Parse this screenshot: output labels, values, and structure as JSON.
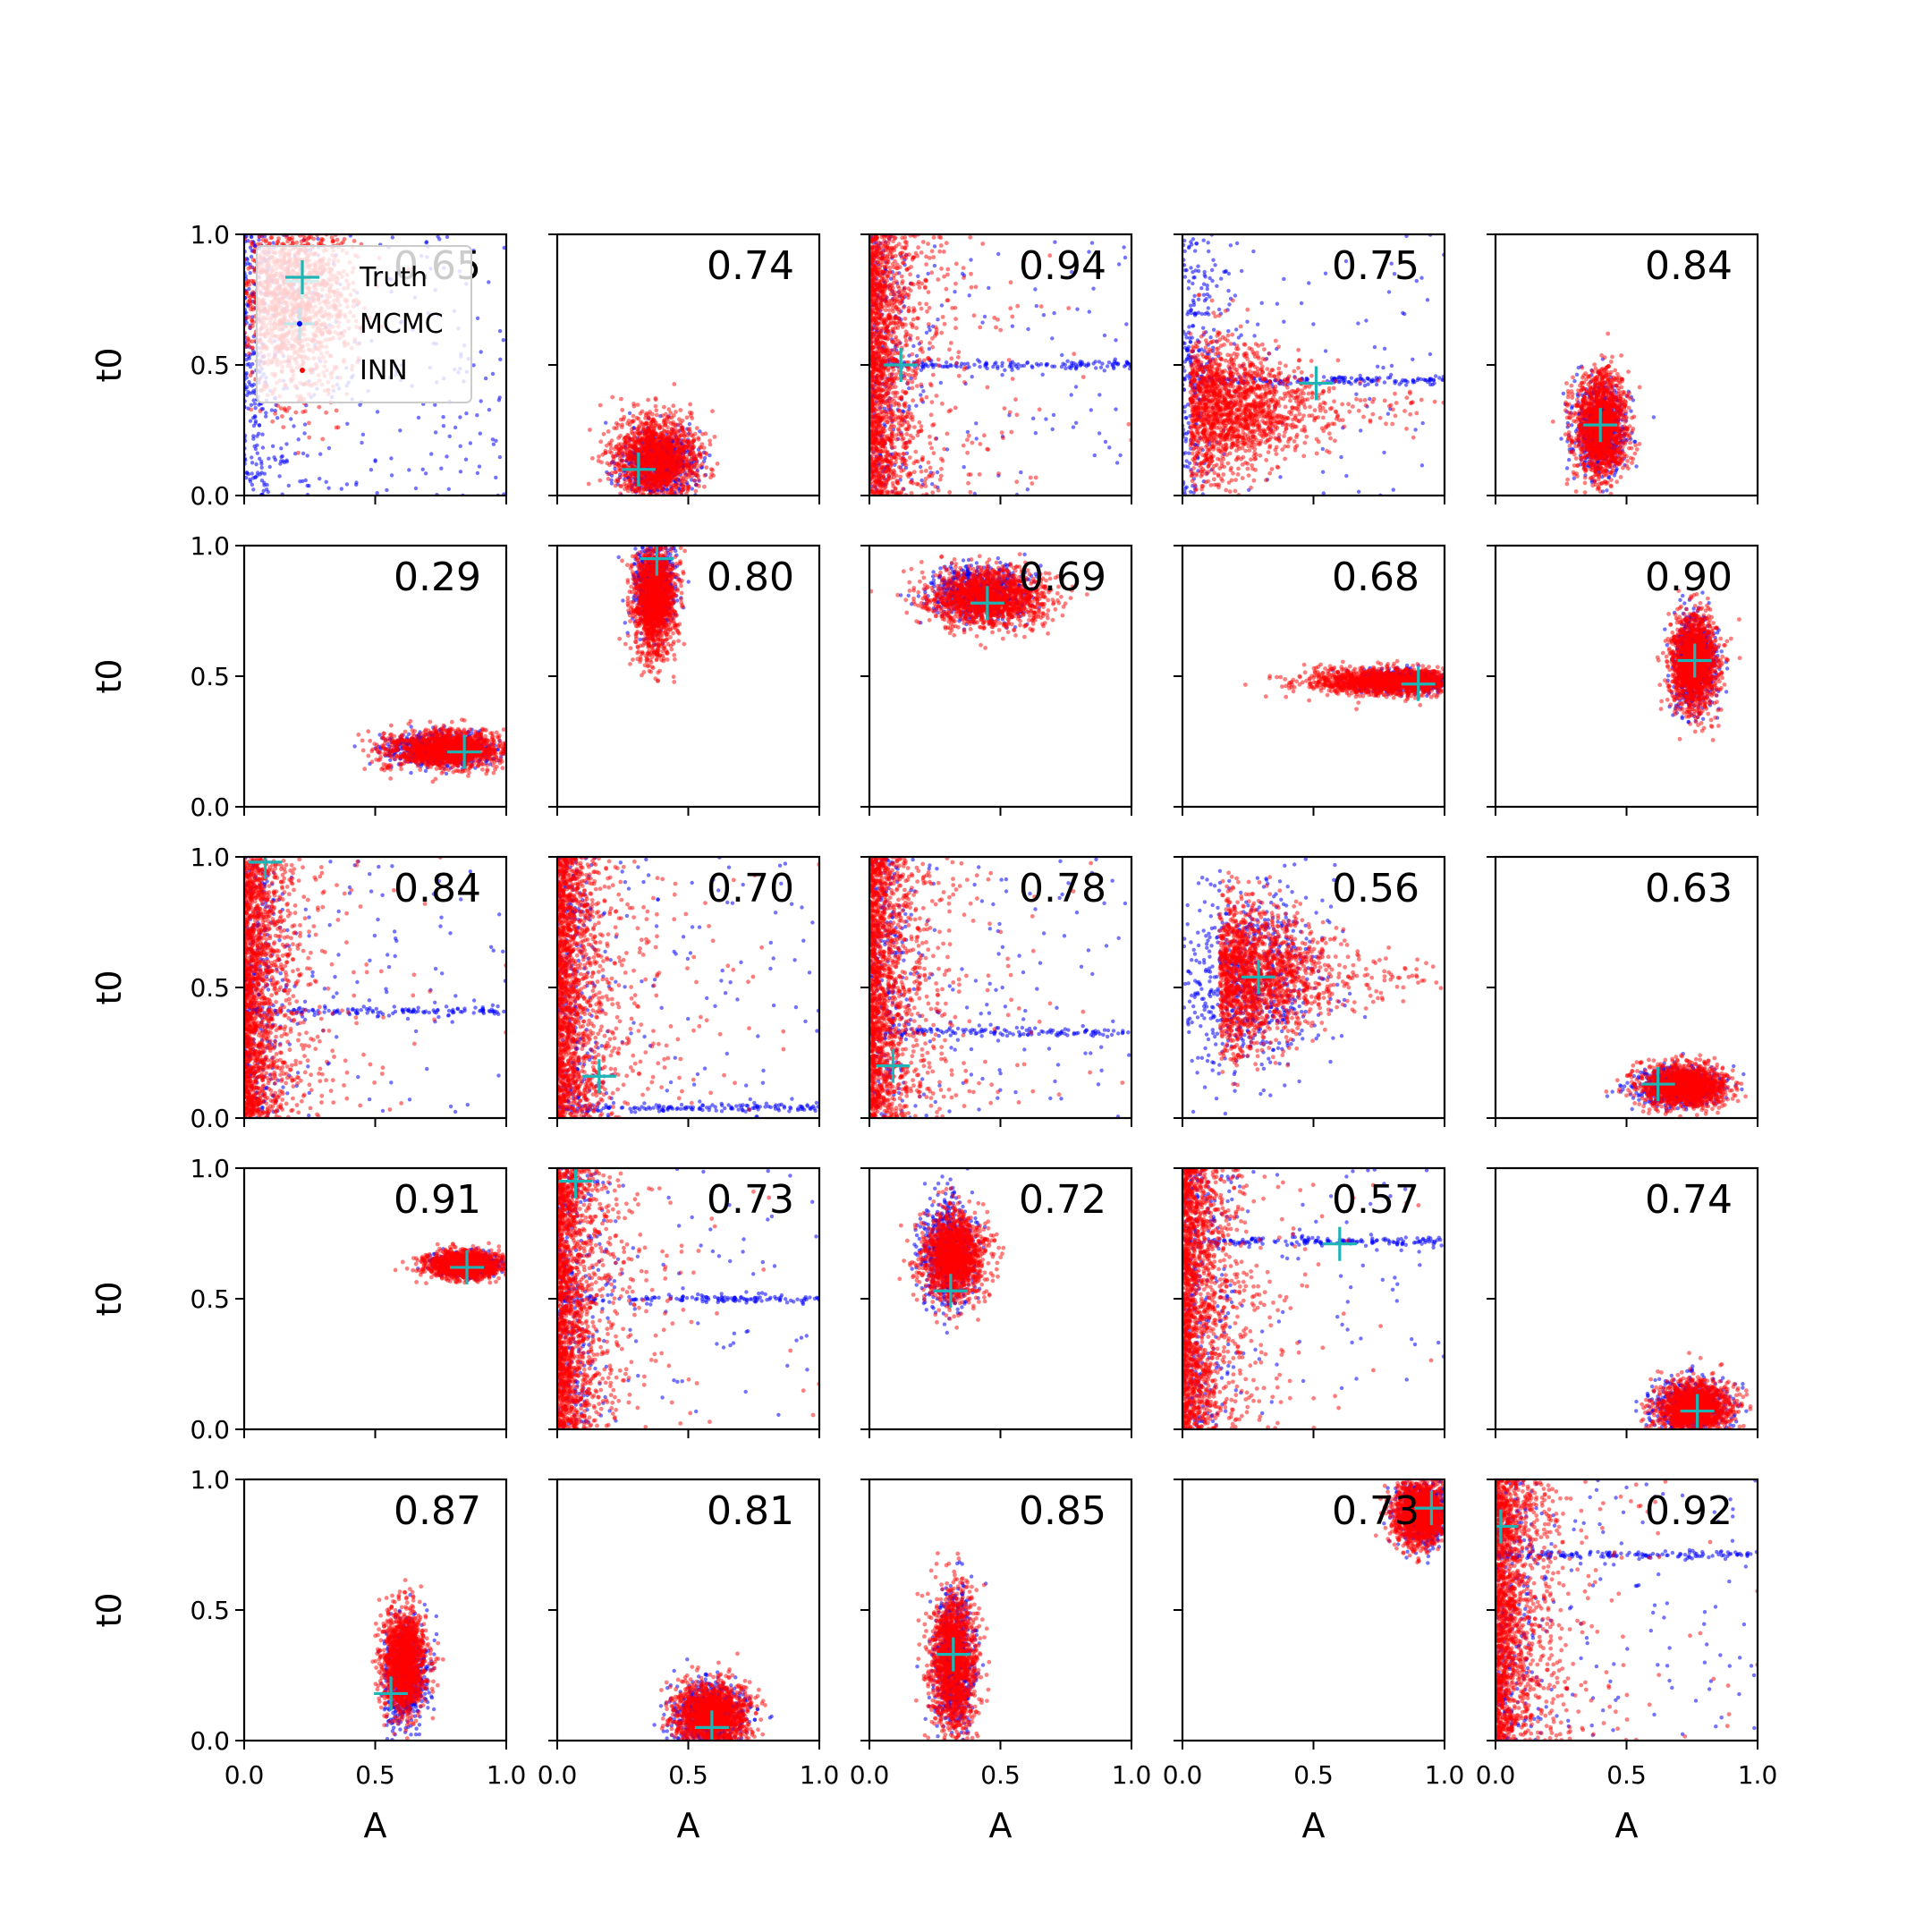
{
  "chart_data": {
    "type": "scatter",
    "rows": 5,
    "cols": 5,
    "xlabel": "A",
    "ylabel": "t0",
    "xlim": [
      0.0,
      1.0
    ],
    "ylim": [
      0.0,
      1.0
    ],
    "xticks": [
      "0.0",
      "0.5",
      "1.0"
    ],
    "yticks": [
      "0.0",
      "0.5",
      "1.0"
    ],
    "legend": {
      "placement": "top-left of first panel",
      "entries": [
        {
          "name": "Truth",
          "marker": "+",
          "color": "#1fb5b5"
        },
        {
          "name": "MCMC",
          "marker": "dot",
          "color": "#0000ff"
        },
        {
          "name": "INN",
          "marker": "dot",
          "color": "#ff0000"
        }
      ]
    },
    "panels": [
      {
        "corr": "0.65",
        "truth": [
          0.22,
          0.82
        ],
        "mcmc": {
          "kind": "wide",
          "cx": 0.15,
          "cy": 0.75
        },
        "inn": {
          "kind": "blob",
          "cx": 0.18,
          "cy": 0.75,
          "sx": 0.12,
          "sy": 0.18,
          "extra": "left-edge"
        }
      },
      {
        "corr": "0.74",
        "truth": [
          0.31,
          0.1
        ],
        "mcmc": {
          "kind": "blob",
          "cx": 0.38,
          "cy": 0.12,
          "sx": 0.07,
          "sy": 0.06
        },
        "inn": {
          "kind": "blob",
          "cx": 0.38,
          "cy": 0.14,
          "sx": 0.08,
          "sy": 0.08
        }
      },
      {
        "corr": "0.94",
        "truth": [
          0.12,
          0.5
        ],
        "mcmc": {
          "kind": "wide",
          "cx": 0.1,
          "cy": 0.5,
          "streak_y": 0.5
        },
        "inn": {
          "kind": "leftwall",
          "cx": 0.05,
          "cy": 0.55
        }
      },
      {
        "corr": "0.75",
        "truth": [
          0.51,
          0.43
        ],
        "mcmc": {
          "kind": "wide",
          "cx": 0.2,
          "cy": 0.4,
          "streak_y": 0.44
        },
        "inn": {
          "kind": "fan",
          "cx": 0.15,
          "cy": 0.33,
          "sx": 0.2,
          "sy": 0.15
        }
      },
      {
        "corr": "0.84",
        "truth": [
          0.4,
          0.27
        ],
        "mcmc": {
          "kind": "blob",
          "cx": 0.4,
          "cy": 0.25,
          "sx": 0.05,
          "sy": 0.08
        },
        "inn": {
          "kind": "blob",
          "cx": 0.4,
          "cy": 0.27,
          "sx": 0.05,
          "sy": 0.1
        }
      },
      {
        "corr": "0.29",
        "truth": [
          0.84,
          0.21
        ],
        "mcmc": {
          "kind": "blob",
          "cx": 0.75,
          "cy": 0.22,
          "sx": 0.1,
          "sy": 0.03
        },
        "inn": {
          "kind": "blob",
          "cx": 0.78,
          "cy": 0.22,
          "sx": 0.12,
          "sy": 0.035
        }
      },
      {
        "corr": "0.80",
        "truth": [
          0.38,
          0.95
        ],
        "mcmc": {
          "kind": "blob",
          "cx": 0.37,
          "cy": 0.85,
          "sx": 0.04,
          "sy": 0.08
        },
        "inn": {
          "kind": "blob",
          "cx": 0.37,
          "cy": 0.8,
          "sx": 0.04,
          "sy": 0.11
        }
      },
      {
        "corr": "0.69",
        "truth": [
          0.45,
          0.78
        ],
        "mcmc": {
          "kind": "blob",
          "cx": 0.42,
          "cy": 0.82,
          "sx": 0.09,
          "sy": 0.05
        },
        "inn": {
          "kind": "blob",
          "cx": 0.45,
          "cy": 0.8,
          "sx": 0.11,
          "sy": 0.055
        }
      },
      {
        "corr": "0.68",
        "truth": [
          0.9,
          0.47
        ],
        "mcmc": {
          "kind": "blob",
          "cx": 0.85,
          "cy": 0.48,
          "sx": 0.1,
          "sy": 0.02
        },
        "inn": {
          "kind": "blob",
          "cx": 0.78,
          "cy": 0.48,
          "sx": 0.15,
          "sy": 0.025
        }
      },
      {
        "corr": "0.90",
        "truth": [
          0.76,
          0.56
        ],
        "mcmc": {
          "kind": "blob",
          "cx": 0.76,
          "cy": 0.56,
          "sx": 0.04,
          "sy": 0.09
        },
        "inn": {
          "kind": "blob",
          "cx": 0.76,
          "cy": 0.55,
          "sx": 0.045,
          "sy": 0.09
        }
      },
      {
        "corr": "0.84",
        "truth": [
          0.08,
          0.98
        ],
        "mcmc": {
          "kind": "wide",
          "cx": 0.06,
          "cy": 0.5,
          "streak_y": 0.41
        },
        "inn": {
          "kind": "leftwall",
          "cx": 0.07,
          "cy": 0.6
        }
      },
      {
        "corr": "0.70",
        "truth": [
          0.16,
          0.16
        ],
        "mcmc": {
          "kind": "wide",
          "cx": 0.1,
          "cy": 0.4,
          "streak_y": 0.04
        },
        "inn": {
          "kind": "leftwall",
          "cx": 0.05,
          "cy": 0.5
        }
      },
      {
        "corr": "0.78",
        "truth": [
          0.09,
          0.2
        ],
        "mcmc": {
          "kind": "wide",
          "cx": 0.15,
          "cy": 0.4,
          "streak_y": 0.33
        },
        "inn": {
          "kind": "leftwall",
          "cx": 0.08,
          "cy": 0.55
        }
      },
      {
        "corr": "0.56",
        "truth": [
          0.29,
          0.54
        ],
        "mcmc": {
          "kind": "blob",
          "cx": 0.25,
          "cy": 0.55,
          "sx": 0.15,
          "sy": 0.18
        },
        "inn": {
          "kind": "fan",
          "cx": 0.25,
          "cy": 0.55,
          "sx": 0.18,
          "sy": 0.16
        }
      },
      {
        "corr": "0.63",
        "truth": [
          0.62,
          0.13
        ],
        "mcmc": {
          "kind": "blob",
          "cx": 0.7,
          "cy": 0.12,
          "sx": 0.08,
          "sy": 0.035
        },
        "inn": {
          "kind": "blob",
          "cx": 0.72,
          "cy": 0.12,
          "sx": 0.08,
          "sy": 0.04
        }
      },
      {
        "corr": "0.91",
        "truth": [
          0.85,
          0.62
        ],
        "mcmc": {
          "kind": "blob",
          "cx": 0.85,
          "cy": 0.63,
          "sx": 0.06,
          "sy": 0.02
        },
        "inn": {
          "kind": "blob",
          "cx": 0.84,
          "cy": 0.63,
          "sx": 0.07,
          "sy": 0.025
        }
      },
      {
        "corr": "0.73",
        "truth": [
          0.07,
          0.95
        ],
        "mcmc": {
          "kind": "wide",
          "cx": 0.1,
          "cy": 0.5,
          "streak_y": 0.5
        },
        "inn": {
          "kind": "leftwall",
          "cx": 0.05,
          "cy": 0.55
        }
      },
      {
        "corr": "0.72",
        "truth": [
          0.31,
          0.53
        ],
        "mcmc": {
          "kind": "blob",
          "cx": 0.3,
          "cy": 0.68,
          "sx": 0.05,
          "sy": 0.1
        },
        "inn": {
          "kind": "blob",
          "cx": 0.32,
          "cy": 0.66,
          "sx": 0.06,
          "sy": 0.08
        }
      },
      {
        "corr": "0.57",
        "truth": [
          0.6,
          0.71
        ],
        "mcmc": {
          "kind": "wide",
          "cx": 0.15,
          "cy": 0.5,
          "streak_y": 0.72
        },
        "inn": {
          "kind": "leftwall",
          "cx": 0.1,
          "cy": 0.55
        }
      },
      {
        "corr": "0.74",
        "truth": [
          0.77,
          0.07
        ],
        "mcmc": {
          "kind": "blob",
          "cx": 0.75,
          "cy": 0.08,
          "sx": 0.07,
          "sy": 0.05
        },
        "inn": {
          "kind": "blob",
          "cx": 0.76,
          "cy": 0.08,
          "sx": 0.07,
          "sy": 0.05
        }
      },
      {
        "corr": "0.87",
        "truth": [
          0.56,
          0.18
        ],
        "mcmc": {
          "kind": "blob",
          "cx": 0.62,
          "cy": 0.25,
          "sx": 0.04,
          "sy": 0.1
        },
        "inn": {
          "kind": "blob",
          "cx": 0.61,
          "cy": 0.3,
          "sx": 0.04,
          "sy": 0.1
        }
      },
      {
        "corr": "0.81",
        "truth": [
          0.59,
          0.05
        ],
        "mcmc": {
          "kind": "blob",
          "cx": 0.58,
          "cy": 0.1,
          "sx": 0.07,
          "sy": 0.06
        },
        "inn": {
          "kind": "blob",
          "cx": 0.58,
          "cy": 0.1,
          "sx": 0.07,
          "sy": 0.06
        }
      },
      {
        "corr": "0.85",
        "truth": [
          0.32,
          0.33
        ],
        "mcmc": {
          "kind": "blob",
          "cx": 0.32,
          "cy": 0.3,
          "sx": 0.04,
          "sy": 0.14
        },
        "inn": {
          "kind": "blob",
          "cx": 0.32,
          "cy": 0.3,
          "sx": 0.045,
          "sy": 0.14
        }
      },
      {
        "corr": "0.73",
        "truth": [
          0.95,
          0.89
        ],
        "mcmc": {
          "kind": "blob",
          "cx": 0.92,
          "cy": 0.88,
          "sx": 0.05,
          "sy": 0.06
        },
        "inn": {
          "kind": "blob",
          "cx": 0.91,
          "cy": 0.87,
          "sx": 0.05,
          "sy": 0.06
        }
      },
      {
        "corr": "0.92",
        "truth": [
          0.02,
          0.82
        ],
        "mcmc": {
          "kind": "wide",
          "cx": 0.2,
          "cy": 0.7,
          "streak_y": 0.71
        },
        "inn": {
          "kind": "leftwall",
          "cx": 0.04,
          "cy": 0.5
        }
      }
    ]
  }
}
